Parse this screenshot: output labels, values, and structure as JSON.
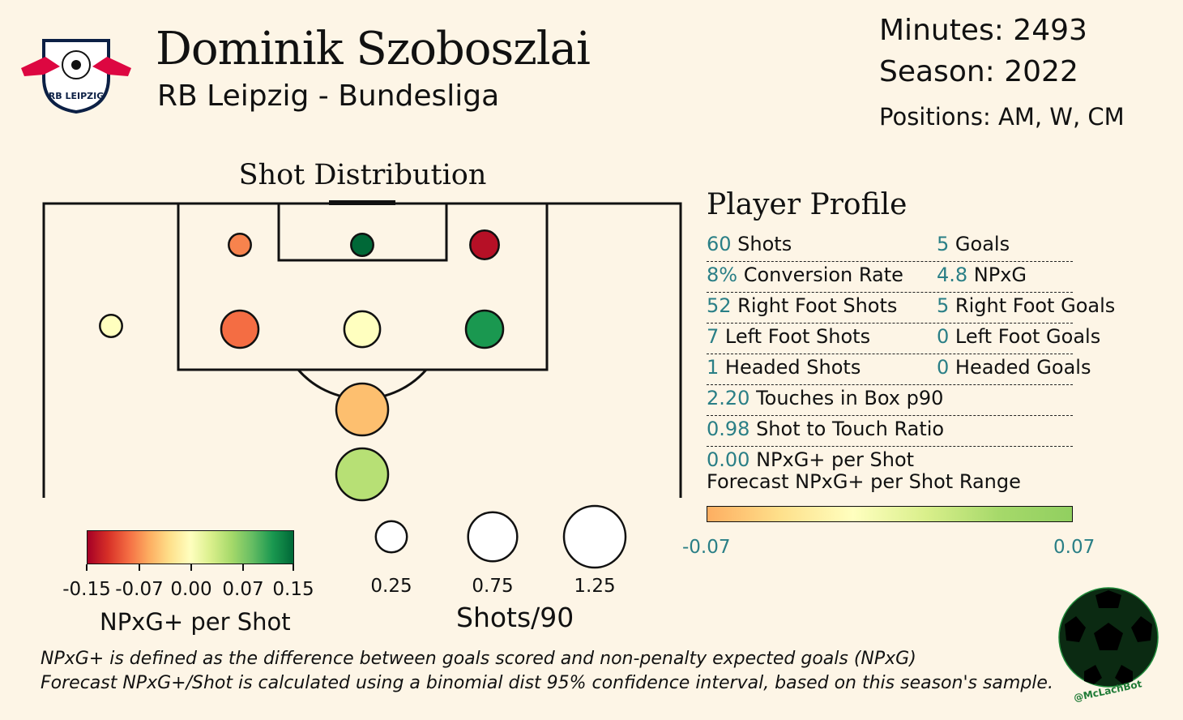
{
  "header": {
    "player_name": "Dominik Szoboszlai",
    "team_league": "RB Leipzig - Bundesliga",
    "minutes_label": "Minutes: 2493",
    "season_label": "Season: 2022",
    "positions_label": "Positions: AM, W, CM"
  },
  "logo": {
    "icon": "rb-leipzig-crest-icon",
    "text": "RB LEIPZIG"
  },
  "shot_distribution_title": "Shot Distribution",
  "profile": {
    "title": "Player Profile",
    "rows": [
      {
        "left_value": "60",
        "left_label": "Shots",
        "right_value": "5",
        "right_label": "Goals"
      },
      {
        "left_value": "8%",
        "left_label": "Conversion Rate",
        "right_value": "4.8",
        "right_label": "NPxG"
      },
      {
        "left_value": "52",
        "left_label": "Right Foot Shots",
        "right_value": "5",
        "right_label": "Right Foot Goals"
      },
      {
        "left_value": "7",
        "left_label": "Left Foot Shots",
        "right_value": "0",
        "right_label": "Left Foot Goals"
      },
      {
        "left_value": "1",
        "left_label": "Headed Shots",
        "right_value": "0",
        "right_label": "Headed Goals"
      },
      {
        "left_value": "2.20",
        "left_label": "Touches in Box p90"
      },
      {
        "left_value": "0.98",
        "left_label": "Shot to Touch Ratio"
      },
      {
        "left_value": "0.00",
        "left_label": "NPxG+ per Shot"
      }
    ],
    "forecast_label": "Forecast NPxG+ per Shot Range",
    "forecast_min": "-0.07",
    "forecast_max": "0.07"
  },
  "colorbar": {
    "title": "NPxG+ per Shot",
    "ticks": [
      "-0.15",
      "-0.07",
      "0.00",
      "0.07",
      "0.15"
    ]
  },
  "size_legend": {
    "title": "Shots/90",
    "labels": [
      "0.25",
      "0.75",
      "1.25"
    ],
    "values": [
      0.25,
      0.75,
      1.25
    ]
  },
  "footnotes": {
    "line1": "NPxG+ is defined as the difference between goals scored and non-penalty expected goals (NPxG)",
    "line2": "Forecast NPxG+/Shot is calculated using a binomial dist 95% confidence interval, based on this season's sample."
  },
  "badge": {
    "text": "@McLachBot",
    "icon": "soccer-ball-icon"
  },
  "chart_data": {
    "type": "scatter",
    "title": "Shot Distribution",
    "size_metric": "Shots/90",
    "color_metric": "NPxG+ per Shot",
    "color_range": [
      -0.15,
      0.15
    ],
    "zones": [
      {
        "zone": "six-yard box left",
        "shots_p90": 0.08,
        "npxg_plus": -0.08
      },
      {
        "zone": "six-yard box centre",
        "shots_p90": 0.08,
        "npxg_plus": 0.15
      },
      {
        "zone": "six-yard box right",
        "shots_p90": 0.2,
        "npxg_plus": -0.14
      },
      {
        "zone": "wide left outside box",
        "shots_p90": 0.08,
        "npxg_plus": 0.0
      },
      {
        "zone": "penalty area left",
        "shots_p90": 0.45,
        "npxg_plus": -0.09
      },
      {
        "zone": "penalty area centre",
        "shots_p90": 0.4,
        "npxg_plus": 0.0
      },
      {
        "zone": "penalty area right",
        "shots_p90": 0.45,
        "npxg_plus": 0.12
      },
      {
        "zone": "edge of box",
        "shots_p90": 1.1,
        "npxg_plus": -0.05
      },
      {
        "zone": "long range",
        "shots_p90": 1.1,
        "npxg_plus": 0.05
      }
    ]
  }
}
